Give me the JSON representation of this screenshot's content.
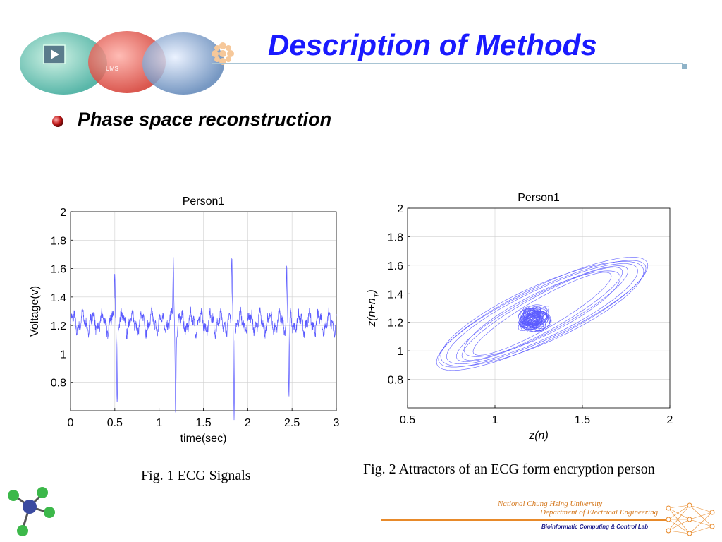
{
  "slide": {
    "title": "Description of Methods",
    "bullet": "Phase space reconstruction",
    "caption_fig1": "Fig. 1 ECG Signals",
    "caption_fig2": "Fig. 2 Attractors of an ECG form encryption person",
    "footer": {
      "university": "National Chung Hsing University",
      "department": "Department of Electrical Engineering",
      "lab": "Bioinformatic Computing & Control Lab",
      "logo_text": "UMS"
    },
    "colors": {
      "title": "#1a1aff",
      "trace": "#5b5bff",
      "footer_accent": "#e88a2a"
    },
    "icons": [
      "play-icon",
      "bullet-sphere-icon",
      "molecule-icon",
      "neural-network-icon"
    ]
  },
  "chart_data": [
    {
      "type": "line",
      "title": "Person1",
      "xlabel": "time(sec)",
      "ylabel": "Voltage(v)",
      "xlim": [
        0,
        3
      ],
      "ylim": [
        0.6,
        2
      ],
      "xticks": [
        0,
        0.5,
        1,
        1.5,
        2,
        2.5,
        3
      ],
      "xtick_labels": [
        "0",
        "0.5",
        "1",
        "1.5",
        "2",
        "2.5",
        "3"
      ],
      "yticks": [
        0.8,
        1,
        1.2,
        1.4,
        1.6,
        1.8,
        2
      ],
      "ytick_labels": [
        "0.8",
        "1",
        "1.2",
        "1.4",
        "1.6",
        "1.8",
        "2"
      ],
      "grid": true,
      "baseline": 1.22,
      "beats": [
        {
          "t": 0.5,
          "peak": 1.62,
          "trough": 0.68
        },
        {
          "t": 1.16,
          "peak": 1.66,
          "trough": 0.62
        },
        {
          "t": 1.82,
          "peak": 1.66,
          "trough": 0.62
        },
        {
          "t": 2.44,
          "peak": 1.6,
          "trough": 0.68
        }
      ]
    },
    {
      "type": "scatter",
      "title": "Person1",
      "xlabel": "z(n)",
      "ylabel_main": "z(n+n",
      "ylabel_sub": "T",
      "ylabel_end": ")",
      "xlim": [
        0.5,
        2
      ],
      "ylim": [
        0.6,
        2
      ],
      "xticks": [
        0.5,
        1,
        1.5,
        2
      ],
      "xtick_labels": [
        "0.5",
        "1",
        "1.5",
        "2"
      ],
      "yticks": [
        0.8,
        1,
        1.2,
        1.4,
        1.6,
        1.8,
        2
      ],
      "ytick_labels": [
        "0.8",
        "1",
        "1.2",
        "1.4",
        "1.6",
        "1.8",
        "2"
      ],
      "grid": true,
      "attractor_center": [
        1.22,
        1.22
      ],
      "core_radius": 0.06
    }
  ]
}
